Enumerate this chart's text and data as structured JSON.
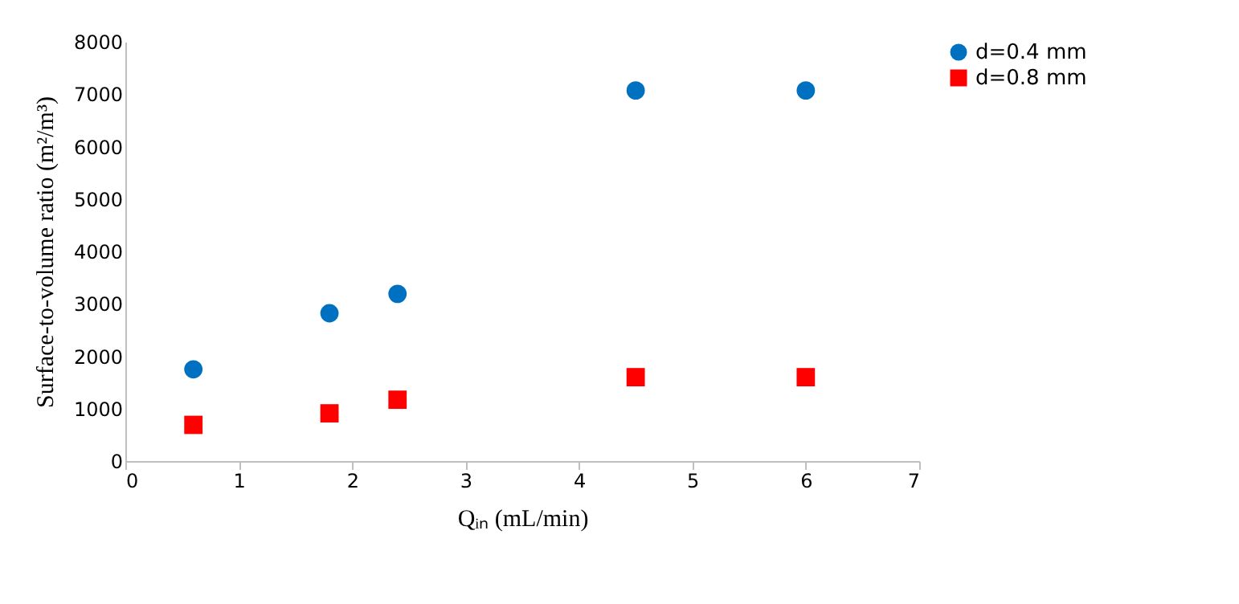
{
  "chart_data": {
    "type": "scatter",
    "xlabel": "Qᵢₙ (mL/min)",
    "ylabel": "Surface-to-volume ratio (m²/m³)",
    "x": [
      0.6,
      1.8,
      2.4,
      4.5,
      6
    ],
    "series": [
      {
        "name": "d=0.4 mm",
        "color": "#0070c0",
        "marker": "circle",
        "values": [
          1750,
          2820,
          3190,
          7070,
          7070
        ]
      },
      {
        "name": "d=0.8 mm",
        "color": "#ff0000",
        "marker": "square",
        "values": [
          690,
          910,
          1170,
          1600,
          1600
        ]
      }
    ],
    "xlim": [
      0,
      7
    ],
    "xticks": [
      0,
      1,
      2,
      3,
      4,
      5,
      6,
      7
    ],
    "ylim": [
      0,
      8000
    ],
    "yticks": [
      0,
      1000,
      2000,
      3000,
      4000,
      5000,
      6000,
      7000,
      8000
    ],
    "grid": false,
    "legend": "top right"
  }
}
